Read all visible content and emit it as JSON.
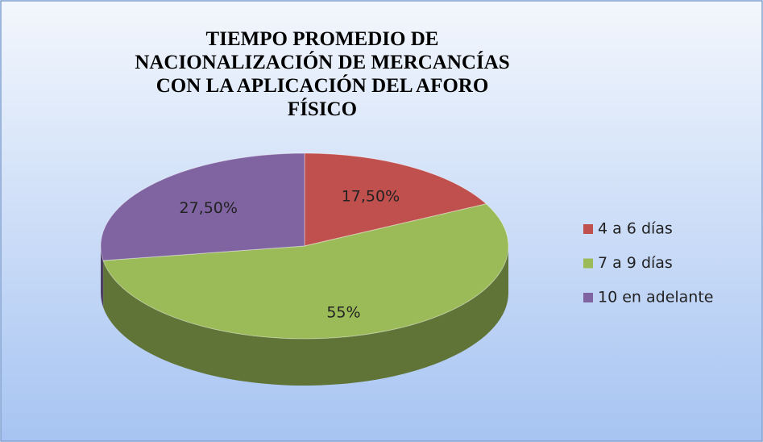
{
  "chart_data": {
    "type": "pie3d",
    "title": "TIEMPO PROMEDIO DE NACIONALIZACIÓN DE MERCANCÍAS CON LA APLICACIÓN DEL AFORO FÍSICO",
    "categories": [
      "4 a 6 días",
      "7 a 9 días",
      "10 en adelante"
    ],
    "values": [
      17.5,
      55,
      27.5
    ],
    "value_labels": [
      "17,50%",
      "55%",
      "27,50%"
    ],
    "colors": [
      "#c0504d",
      "#9bbb59",
      "#8064a2"
    ],
    "legend": "right"
  }
}
